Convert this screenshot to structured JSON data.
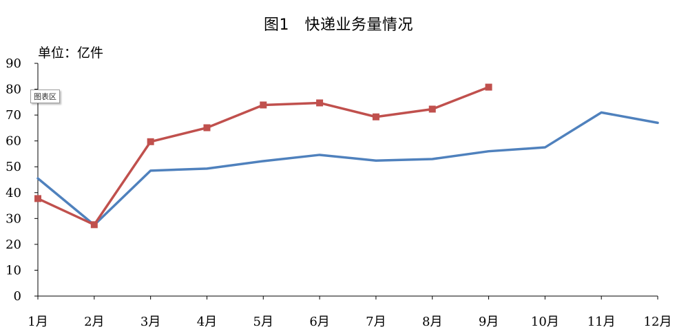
{
  "title": "图1　快递业务量情况",
  "unit": "单位：亿件",
  "tooltip": "图表区",
  "chart_data": {
    "type": "line",
    "title": "图1　快递业务量情况",
    "ylabel": "单位：亿件",
    "xlabel": "",
    "ylim": [
      0,
      90
    ],
    "yticks": [
      0,
      10,
      20,
      30,
      40,
      50,
      60,
      70,
      80,
      90
    ],
    "grid": false,
    "legend": "none",
    "categories": [
      "1月",
      "2月",
      "3月",
      "4月",
      "5月",
      "6月",
      "7月",
      "8月",
      "9月",
      "10月",
      "11月",
      "12月"
    ],
    "series": [
      {
        "color": "#4f81bd",
        "marker": "none",
        "values": [
          45.5,
          27.5,
          48.5,
          49.3,
          52.2,
          54.6,
          52.4,
          53.0,
          56.0,
          57.5,
          71.0,
          67.0
        ]
      },
      {
        "color": "#c0504d",
        "marker": "square",
        "values": [
          37.7,
          27.6,
          59.7,
          65.1,
          73.9,
          74.7,
          69.3,
          72.3,
          80.8,
          null,
          null,
          null
        ]
      }
    ]
  }
}
